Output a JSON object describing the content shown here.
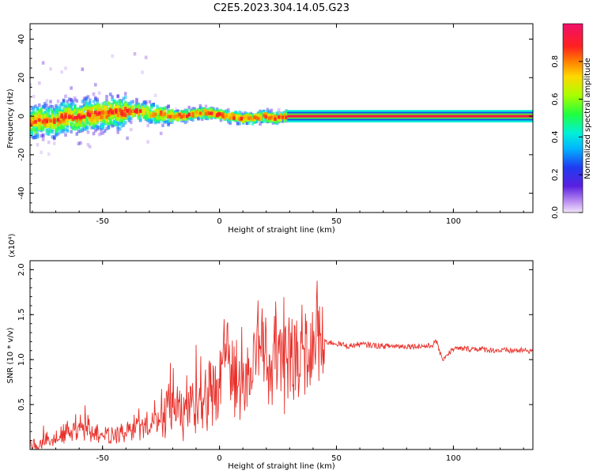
{
  "title": "C2E5.2023.304.14.05.G23",
  "chart_data": [
    {
      "type": "heatmap",
      "xlabel": "Height of straight line (km)",
      "ylabel": "Frequency (Hz)",
      "xlim": [
        -81,
        134
      ],
      "ylim": [
        -50,
        48
      ],
      "xticks": [
        -50,
        0,
        50,
        100
      ],
      "yticks": [
        -40,
        -20,
        0,
        20,
        40
      ],
      "ridge_x": [
        -81,
        -76,
        -71,
        -66,
        -61,
        -56,
        -51,
        -46,
        -41,
        -36,
        -31,
        -26,
        -21,
        -16,
        -11,
        -6,
        -1,
        4,
        9,
        14,
        19,
        24,
        29,
        40,
        60,
        80,
        100,
        120,
        134
      ],
      "ridge_y": [
        -4,
        -2,
        -3,
        0,
        -1,
        1,
        1,
        2,
        2,
        3,
        2,
        1,
        0,
        0,
        1,
        2,
        1,
        0,
        -1,
        -1,
        0,
        -1,
        0,
        0,
        0,
        0,
        0,
        0,
        0
      ],
      "colorbar": {
        "label": "Normalized spectral amplitude",
        "range": [
          0,
          1
        ],
        "ticks": [
          "0.0",
          "0.2",
          "0.4",
          "0.6",
          "0.8"
        ],
        "tick_values": [
          0.0,
          0.2,
          0.4,
          0.6,
          0.8
        ]
      },
      "grid": false
    },
    {
      "type": "line",
      "xlabel": "Height of straight line (km)",
      "ylabel": "SNR (10 * v/v)",
      "scale_label": "(x10⁴)",
      "xlim": [
        -81,
        134
      ],
      "ylim": [
        0,
        2.1
      ],
      "xticks": [
        -50,
        0,
        50,
        100
      ],
      "yticks": [
        "0.5",
        "1.0",
        "1.5",
        "2.0"
      ],
      "ytick_values": [
        0.5,
        1.0,
        1.5,
        2.0
      ],
      "series": [
        {
          "color": "#e8302a",
          "x": [
            -80,
            -75,
            -70,
            -65,
            -60,
            -55,
            -50,
            -45,
            -40,
            -35,
            -30,
            -25,
            -20,
            -15,
            -10,
            -5,
            0,
            3,
            5,
            10,
            15,
            18,
            20,
            25,
            30,
            35,
            40,
            42,
            45,
            50,
            55,
            60,
            70,
            80,
            90,
            93,
            95,
            100,
            110,
            120,
            130,
            134
          ],
          "y": [
            0.05,
            0.06,
            0.12,
            0.25,
            0.3,
            0.25,
            0.2,
            0.15,
            0.2,
            0.25,
            0.25,
            0.45,
            0.55,
            0.45,
            0.6,
            0.7,
            0.75,
            1.5,
            0.95,
            0.8,
            1.05,
            1.7,
            1.0,
            1.15,
            1.05,
            1.2,
            1.15,
            1.5,
            1.2,
            1.18,
            1.15,
            1.17,
            1.15,
            1.15,
            1.15,
            1.2,
            1.0,
            1.12,
            1.12,
            1.1,
            1.1,
            1.1
          ]
        }
      ],
      "grid": false
    }
  ]
}
